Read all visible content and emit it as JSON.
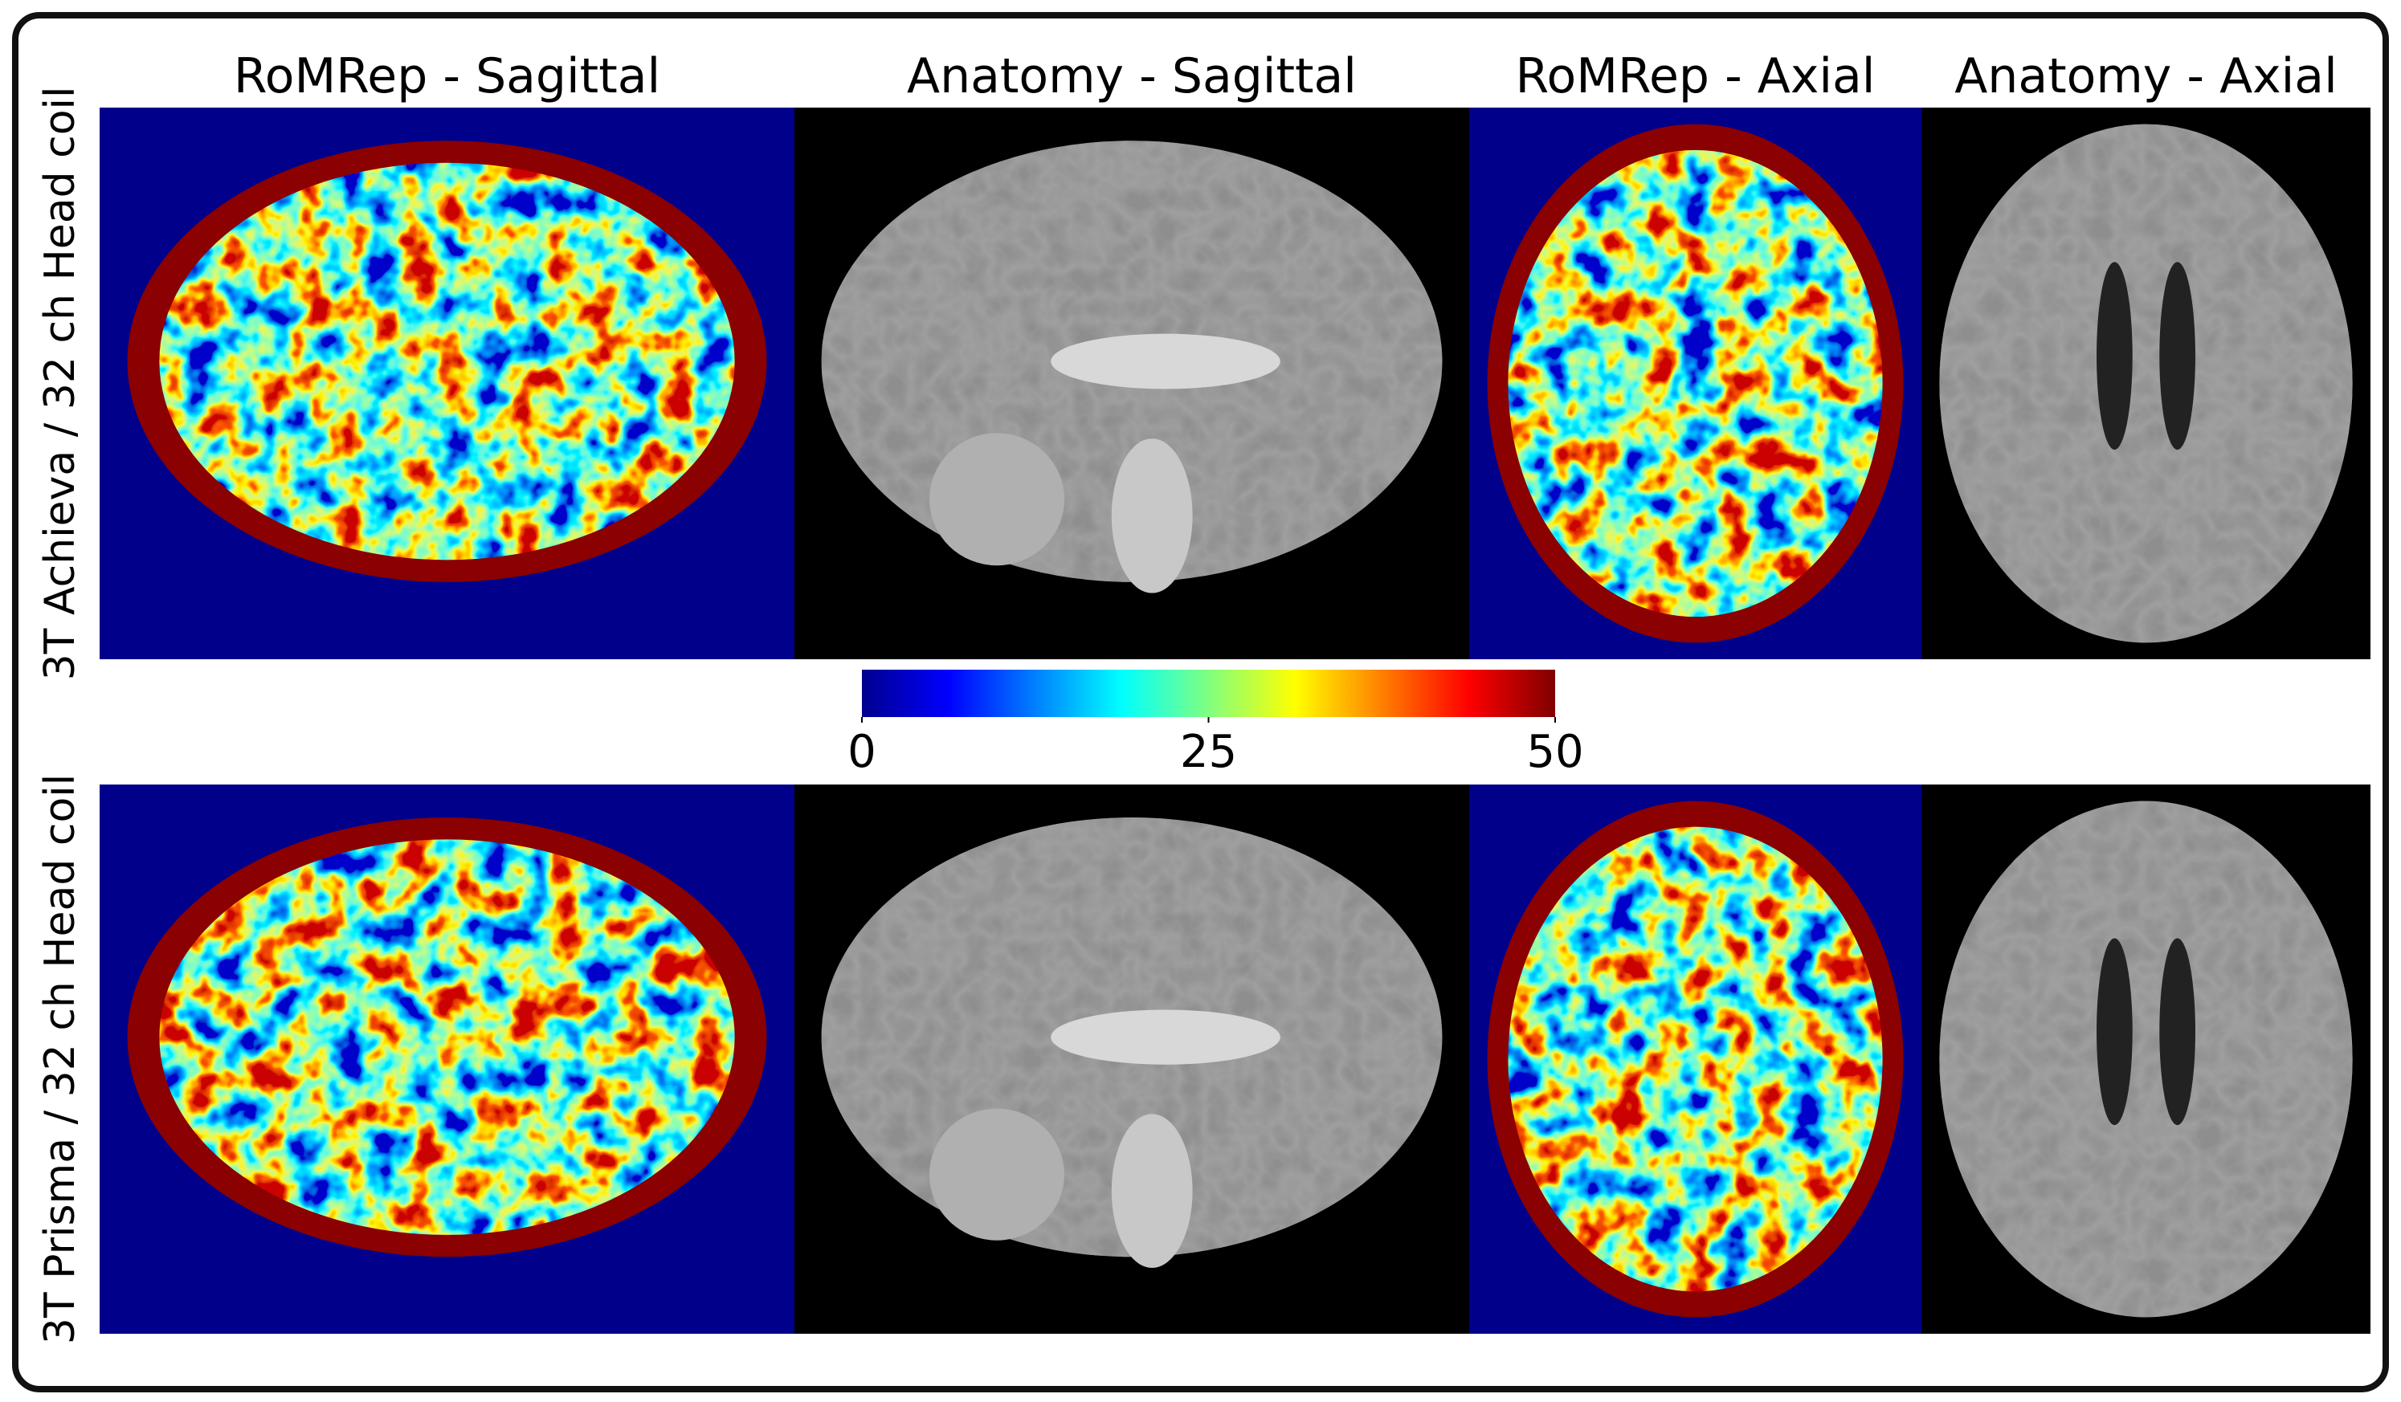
{
  "columns": [
    "RoMRep - Sagittal",
    "Anatomy - Sagittal",
    "RoMRep - Axial",
    "Anatomy - Axial"
  ],
  "rows": [
    "3T Achieva / 32 ch Head coil",
    "3T Prisma / 32 ch Head coil"
  ],
  "colorbar": {
    "min": 0,
    "max": 50,
    "ticks": [
      0,
      25,
      50
    ]
  }
}
